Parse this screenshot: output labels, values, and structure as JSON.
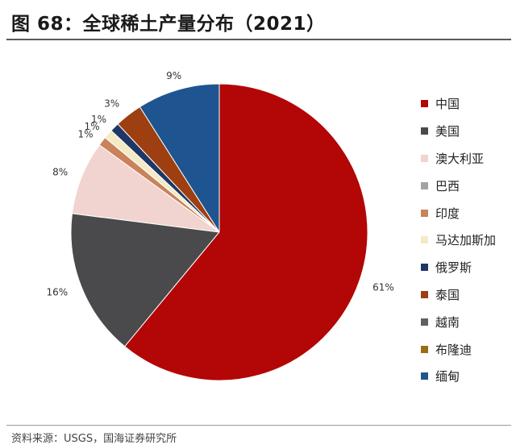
{
  "header": {
    "title": "图 68：全球稀土产量分布（2021）"
  },
  "footer": {
    "source": "资料来源：USGS，国海证券研究所"
  },
  "chart_data": {
    "type": "pie",
    "title": "图 68：全球稀土产量分布（2021）",
    "legend_position": "right",
    "slices": [
      {
        "name": "中国",
        "value": 61,
        "label": "61%",
        "color": "#b30606"
      },
      {
        "name": "美国",
        "value": 16,
        "label": "16%",
        "color": "#4a4a4c"
      },
      {
        "name": "澳大利亚",
        "value": 8,
        "label": "8%",
        "color": "#f1d3cf"
      },
      {
        "name": "巴西",
        "value": 0,
        "label": "",
        "color": "#a3a3a3"
      },
      {
        "name": "印度",
        "value": 1,
        "label": "1%",
        "color": "#c9825a"
      },
      {
        "name": "马达加斯加",
        "value": 1,
        "label": "1%",
        "color": "#f3eac6"
      },
      {
        "name": "俄罗斯",
        "value": 1,
        "label": "1%",
        "color": "#1f3764"
      },
      {
        "name": "泰国",
        "value": 3,
        "label": "3%",
        "color": "#9d3f10"
      },
      {
        "name": "越南",
        "value": 0,
        "label": "",
        "color": "#606060"
      },
      {
        "name": "布隆迪",
        "value": 0,
        "label": "",
        "color": "#9c6b17"
      },
      {
        "name": "缅甸",
        "value": 9,
        "label": "9%",
        "color": "#1e5591"
      }
    ]
  }
}
